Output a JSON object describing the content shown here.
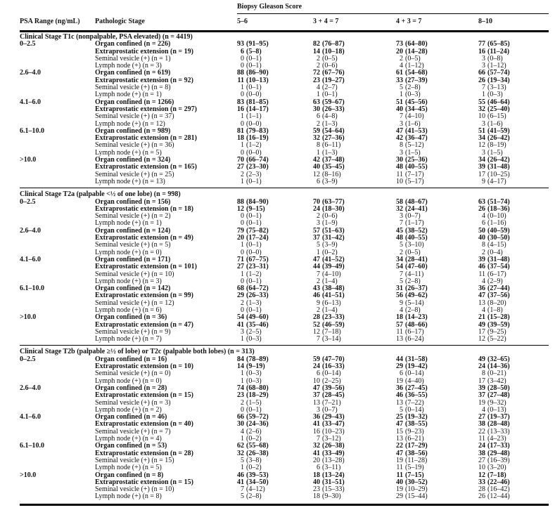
{
  "table": {
    "header": {
      "psa": "PSA Range (ng/mL)",
      "stage": "Pathologic Stage",
      "gleason_group": "Biopsy Gleason Score",
      "gleason_cols": [
        "5–6",
        "3 + 4 = 7",
        "4 + 3 = 7",
        "8–10"
      ]
    },
    "sections": [
      {
        "title": "Clinical Stage T1c (nonpalpable, PSA elevated) (n = 4419)",
        "groups": [
          {
            "psa": "0–2.5",
            "rows": [
              {
                "label": "Organ confined (n = 226)",
                "values": [
                  "93 (91–95)",
                  "82 (76–87)",
                  "73 (64–80)",
                  "77 (65–85)"
                ]
              },
              {
                "label": "Extraprostatic extension (n = 19)",
                "values": [
                  "6 (5–8)",
                  "14 (10–18)",
                  "20 (14–28)",
                  "16 (11–24)"
                ]
              },
              {
                "label": "Seminal vesicle (+) (n = 1)",
                "values": [
                  "0 (0–1)",
                  "2 (0–5)",
                  "2 (0–5)",
                  "3 (0–8)"
                ]
              },
              {
                "label": "Lymph node (+) (n = 3)",
                "values": [
                  "0 (0–1)",
                  "2 (0–6)",
                  "4 (1–12)",
                  "3 (1–12)"
                ]
              }
            ]
          },
          {
            "psa": "2.6–4.0",
            "rows": [
              {
                "label": "Organ confined (n = 619)",
                "values": [
                  "88 (86–90)",
                  "72 (67–76)",
                  "61 (54–68)",
                  "66 (57–74)"
                ]
              },
              {
                "label": "Extraprostatic extension (n = 92)",
                "values": [
                  "11 (10–13)",
                  "23 (19–27)",
                  "33 (27–39)",
                  "26 (19–34)"
                ]
              },
              {
                "label": "Seminal vesicle (+) (n = 8)",
                "values": [
                  "1 (0–1)",
                  "4 (2–7)",
                  "5 (2–8)",
                  "7 (3–13)"
                ]
              },
              {
                "label": "Lymph node (+) (n = 1)",
                "values": [
                  "0 (0–0)",
                  "1 (0–1)",
                  "1 (0–3)",
                  "1 (0–3)"
                ]
              }
            ]
          },
          {
            "psa": "4.1–6.0",
            "rows": [
              {
                "label": "Organ confined (n = 1266)",
                "values": [
                  "83 (81–85)",
                  "63 (59–67)",
                  "51 (45–56)",
                  "55 (46–64)"
                ]
              },
              {
                "label": "Extraprostatic extension (n = 297)",
                "values": [
                  "16 (14–17)",
                  "30 (26–33)",
                  "40 (34–45)",
                  "32 (25–40)"
                ]
              },
              {
                "label": "Seminal vesicle (+) (n = 37)",
                "values": [
                  "1 (1–1)",
                  "6 (4–8)",
                  "7 (4–10)",
                  "10 (6–15)"
                ]
              },
              {
                "label": "Lymph node (+) (n = 12)",
                "values": [
                  "0 (0–0)",
                  "2 (1–3)",
                  "3 (1–6)",
                  "3 (1–6)"
                ]
              }
            ]
          },
          {
            "psa": "6.1–10.0",
            "rows": [
              {
                "label": "Organ confined (n = 989)",
                "values": [
                  "81 (79–83)",
                  "59 (54–64)",
                  "47 (41–53)",
                  "51 (41–59)"
                ]
              },
              {
                "label": "Extraprostatic extension (n = 281)",
                "values": [
                  "18 (16–19)",
                  "32 (27–36)",
                  "42 (36–47)",
                  "34 (26–42)"
                ]
              },
              {
                "label": "Seminal vesicle (+) (n = 36)",
                "values": [
                  "1 (1–2)",
                  "8 (6–11)",
                  "8 (5–12)",
                  "12 (8–19)"
                ]
              },
              {
                "label": "Lymph node (+) (n = 5)",
                "values": [
                  "0 (0–0)",
                  "1 (1–3)",
                  "3 (1–5)",
                  "3 (1–5)"
                ]
              }
            ]
          },
          {
            "psa": ">10.0",
            "rows": [
              {
                "label": "Organ confined (n = 324)",
                "values": [
                  "70 (66–74)",
                  "42 (37–48)",
                  "30 (25–36)",
                  "34 (26–42)"
                ]
              },
              {
                "label": "Extraprostatic extension (n = 165)",
                "values": [
                  "27 (23–30)",
                  "40 (35–45)",
                  "48 (40–55)",
                  "39 (31–48)"
                ]
              },
              {
                "label": "Seminal vesicle (+) (n = 25)",
                "values": [
                  "2 (2–3)",
                  "12 (8–16)",
                  "11 (7–17)",
                  "17 (10–25)"
                ]
              },
              {
                "label": "Lymph node (+) (n = 13)",
                "values": [
                  "1 (0–1)",
                  "6 (3–9)",
                  "10 (5–17)",
                  "9 (4–17)"
                ]
              }
            ]
          }
        ]
      },
      {
        "title": "Clinical Stage T2a (palpable <½ of one lobe) (n = 998)",
        "groups": [
          {
            "psa": "0–2.5",
            "rows": [
              {
                "label": "Organ confined (n = 156)",
                "values": [
                  "88 (84–90)",
                  "70 (63–77)",
                  "58 (48–67)",
                  "63 (51–74)"
                ]
              },
              {
                "label": "Extraprostatic extension (n = 18)",
                "values": [
                  "12 (9–15)",
                  "24 (18–30)",
                  "32 (24–41)",
                  "26 (18–36)"
                ]
              },
              {
                "label": "Seminal vesicle (+) (n = 2)",
                "values": [
                  "0 (0–1)",
                  "2 (0–6)",
                  "3 (0–7)",
                  "4 (0–10)"
                ]
              },
              {
                "label": "Lymph node (+) (n = 1)",
                "values": [
                  "0 (0–1)",
                  "3 (1–9)",
                  "7 (1–17)",
                  "6 (1–16)"
                ]
              }
            ]
          },
          {
            "psa": "2.6–4.0",
            "rows": [
              {
                "label": "Organ confined (n = 124)",
                "values": [
                  "79 (75–82)",
                  "57 (51–63)",
                  "45 (38–52)",
                  "50 (40–59)"
                ]
              },
              {
                "label": "Extraprostatic extension (n = 49)",
                "values": [
                  "20 (17–24)",
                  "37 (31–42)",
                  "48 (40–55)",
                  "40 (30–50)"
                ]
              },
              {
                "label": "Seminal vesicle (+) (n = 5)",
                "values": [
                  "1 (0–1)",
                  "5 (3–9)",
                  "5 (3–10)",
                  "8 (4–15)"
                ]
              },
              {
                "label": "Lymph node (+) (n = 0)",
                "values": [
                  "0 (0–0)",
                  "1 (0–2)",
                  "2 (0–5)",
                  "2 (0–4)"
                ]
              }
            ]
          },
          {
            "psa": "4.1–6.0",
            "rows": [
              {
                "label": "Organ confined (n = 171)",
                "values": [
                  "71 (67–75)",
                  "47 (41–52)",
                  "34 (28–41)",
                  "39 (31–48)"
                ]
              },
              {
                "label": "Extraprostatic extension (n = 101)",
                "values": [
                  "27 (23–31)",
                  "44 (39–49)",
                  "54 (47–60)",
                  "46 (37–54)"
                ]
              },
              {
                "label": "Seminal vesicle (+) (n = 10)",
                "values": [
                  "1 (1–2)",
                  "7 (4–10)",
                  "7 (4–11)",
                  "11 (6–17)"
                ]
              },
              {
                "label": "Lymph node (+) (n = 3)",
                "values": [
                  "0 (0–1)",
                  "2 (1–4)",
                  "5 (2–8)",
                  "4 (2–9)"
                ]
              }
            ]
          },
          {
            "psa": "6.1–10.0",
            "rows": [
              {
                "label": "Organ confined (n = 142)",
                "values": [
                  "68 (64–72)",
                  "43 (38–48)",
                  "31 (26–37)",
                  "36 (27–44)"
                ]
              },
              {
                "label": "Extraprostatic extension (n = 99)",
                "values": [
                  "29 (26–33)",
                  "46 (41–51)",
                  "56 (49–62)",
                  "47 (37–56)"
                ]
              },
              {
                "label": "Seminal vesicle (+) (n = 12)",
                "values": [
                  "2 (1–3)",
                  "9 (6–13)",
                  "9 (5–14)",
                  "13 (8–20)"
                ]
              },
              {
                "label": "Lymph node (+) (n = 6)",
                "values": [
                  "0 (0–1)",
                  "2 (1–4)",
                  "4 (2–8)",
                  "4 (1–8)"
                ]
              }
            ]
          },
          {
            "psa": ">10.0",
            "rows": [
              {
                "label": "Organ confined (n = 36)",
                "values": [
                  "54 (49–60)",
                  "28 (23–33)",
                  "18 (14–23)",
                  "21 (15–28)"
                ]
              },
              {
                "label": "Extraprostatic extension (n = 47)",
                "values": [
                  "41 (35–46)",
                  "52 (46–59)",
                  "57 (48–66)",
                  "49 (39–59)"
                ]
              },
              {
                "label": "Seminal vesicle (+) (n = 9)",
                "values": [
                  "3 (2–5)",
                  "12 (7–18)",
                  "11 (6–17)",
                  "17 (9–25)"
                ]
              },
              {
                "label": "Lymph node (+) (n = 7)",
                "values": [
                  "1 (0–3)",
                  "7 (3–14)",
                  "13 (6–24)",
                  "12 (5–22)"
                ]
              }
            ]
          }
        ]
      },
      {
        "title": "Clinical Stage T2b (palpable ≥½ of lobe) or T2c (palpable both lobes) (n = 313)",
        "groups": [
          {
            "psa": "0–2.5",
            "rows": [
              {
                "label": "Organ confined (n = 16)",
                "values": [
                  "84 (78–89)",
                  "59 (47–70)",
                  "44 (31–58)",
                  "49 (32–65)"
                ]
              },
              {
                "label": "Extraprostatic extension (n = 10)",
                "values": [
                  "14 (9–19)",
                  "24 (16–33)",
                  "29 (19–42)",
                  "24 (14–36)"
                ]
              },
              {
                "label": "Seminal vesicle (+) (n = 0)",
                "values": [
                  "1 (0–3)",
                  "6 (0–14)",
                  "6 (0–14)",
                  "8 (0–21)"
                ]
              },
              {
                "label": "Lymph node (+) (n = 0)",
                "values": [
                  "1 (0–3)",
                  "10 (2–25)",
                  "19 (4–40)",
                  "17 (3–42)"
                ]
              }
            ]
          },
          {
            "psa": "2.6–4.0",
            "rows": [
              {
                "label": "Organ confined (n = 28)",
                "values": [
                  "74 (68–80)",
                  "47 (39–56)",
                  "36 (27–45)",
                  "39 (28–50)"
                ]
              },
              {
                "label": "Extraprostatic extension (n = 15)",
                "values": [
                  "23 (18–29)",
                  "37 (28–45)",
                  "46 (36–55)",
                  "37 (27–48)"
                ]
              },
              {
                "label": "Seminal vesicle (+) (n = 3)",
                "values": [
                  "2 (1–5)",
                  "13 (7–21)",
                  "13 (7–22)",
                  "19 (9–32)"
                ]
              },
              {
                "label": "Lymph node (+) (n = 2)",
                "values": [
                  "0 (0–1)",
                  "3 (0–7)",
                  "5 (0–14)",
                  "4 (0–13)"
                ]
              }
            ]
          },
          {
            "psa": "4.1–6.0",
            "rows": [
              {
                "label": "Organ confined (n = 46)",
                "values": [
                  "66 (59–72)",
                  "36 (29–43)",
                  "25 (19–32)",
                  "27 (19–37)"
                ]
              },
              {
                "label": "Extraprostatic extension (n = 40)",
                "values": [
                  "30 (24–36)",
                  "41 (33–47)",
                  "47 (38–55)",
                  "38 (28–48)"
                ]
              },
              {
                "label": "Seminal vesicle (+) (n = 7)",
                "values": [
                  "4 (2–6)",
                  "16 (10–23)",
                  "15 (9–23)",
                  "22 (13–33)"
                ]
              },
              {
                "label": "Lymph node (+) (n = 4)",
                "values": [
                  "1 (0–2)",
                  "7 (3–12)",
                  "13 (6–21)",
                  "11 (4–23)"
                ]
              }
            ]
          },
          {
            "psa": "6.1–10.0",
            "rows": [
              {
                "label": "Organ confined (n = 53)",
                "values": [
                  "62 (55–68)",
                  "32 (26–38)",
                  "22 (17–29)",
                  "24 (17–33)"
                ]
              },
              {
                "label": "Extraprostatic extension (n = 28)",
                "values": [
                  "32 (26–38)",
                  "41 (33–49)",
                  "47 (38–56)",
                  "38 (29–48)"
                ]
              },
              {
                "label": "Seminal vesicle (+) (n = 15)",
                "values": [
                  "5 (3–8)",
                  "20 (13–28)",
                  "19 (11–28)",
                  "27 (16–39)"
                ]
              },
              {
                "label": "Lymph node (+) (n = 5)",
                "values": [
                  "1 (0–2)",
                  "6 (3–11)",
                  "11 (5–19)",
                  "10 (3–20)"
                ]
              }
            ]
          },
          {
            "psa": ">10.0",
            "rows": [
              {
                "label": "Organ confined (n = 8)",
                "values": [
                  "46 (39–53)",
                  "18 (13–24)",
                  "11 (7–15)",
                  "12 (7–18)"
                ]
              },
              {
                "label": "Extraprostatic extension (n = 15)",
                "values": [
                  "41 (34–50)",
                  "40 (31–51)",
                  "40 (30–52)",
                  "33 (22–46)"
                ]
              },
              {
                "label": "Seminal vesicle (+) (n = 10)",
                "values": [
                  "7 (4–12)",
                  "23 (15–33)",
                  "19 (10–29)",
                  "28 (16–42)"
                ]
              },
              {
                "label": "Lymph node (+) (n = 8)",
                "values": [
                  "5 (2–8)",
                  "18 (9–30)",
                  "29 (15–44)",
                  "26 (12–44)"
                ]
              }
            ]
          }
        ]
      }
    ]
  }
}
